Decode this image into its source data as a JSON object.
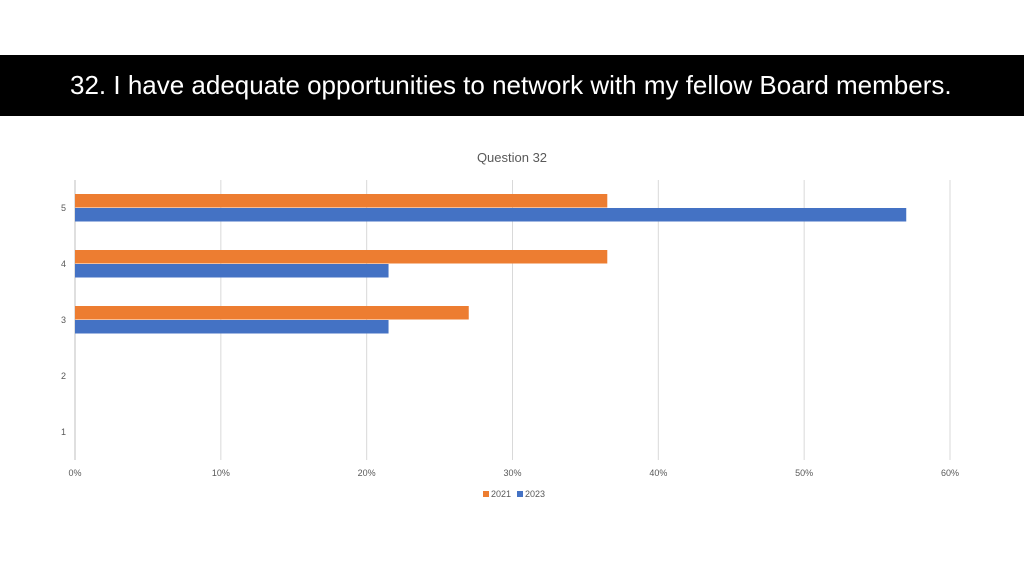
{
  "slide": {
    "title": "32. I have adequate opportunities to network with my fellow Board members."
  },
  "chart_data": {
    "type": "bar",
    "orientation": "horizontal",
    "title": "Question 32",
    "categories": [
      "1",
      "2",
      "3",
      "4",
      "5"
    ],
    "series": [
      {
        "name": "2021",
        "color": "#ED7D31",
        "values": [
          0,
          0,
          27,
          36.5,
          36.5
        ]
      },
      {
        "name": "2023",
        "color": "#4472C4",
        "values": [
          0,
          0,
          21.5,
          21.5,
          57
        ]
      }
    ],
    "xlim": [
      0,
      60
    ],
    "xticks": [
      0,
      10,
      20,
      30,
      40,
      50,
      60
    ],
    "xtick_labels": [
      "0%",
      "10%",
      "20%",
      "30%",
      "40%",
      "50%",
      "60%"
    ],
    "grid": true,
    "legend_position": "bottom"
  }
}
